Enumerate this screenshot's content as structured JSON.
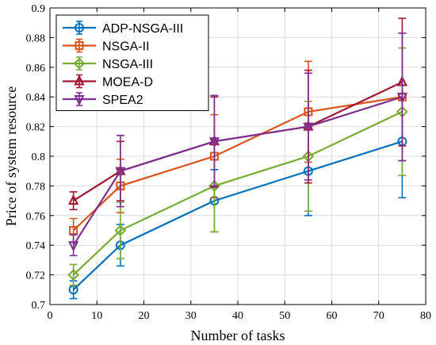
{
  "chart_data": {
    "type": "line",
    "title": "",
    "xlabel": "Number of tasks",
    "ylabel": "Price of system resource",
    "xlim": [
      0,
      80
    ],
    "ylim": [
      0.7,
      0.9
    ],
    "xticks": [
      0,
      10,
      20,
      30,
      40,
      50,
      60,
      70,
      80
    ],
    "yticks": [
      0.7,
      0.72,
      0.74,
      0.76,
      0.78,
      0.8,
      0.82,
      0.84,
      0.86,
      0.88,
      0.9
    ],
    "x": [
      5,
      15,
      35,
      55,
      75
    ],
    "grid": true,
    "legend_position": "top-left",
    "series": [
      {
        "name": "ADP-NSGA-III",
        "color": "#0072BD",
        "marker": "circle",
        "values": [
          0.71,
          0.74,
          0.77,
          0.79,
          0.81
        ],
        "errors": [
          0.006,
          0.014,
          0.021,
          0.03,
          0.038
        ]
      },
      {
        "name": "NSGA-II",
        "color": "#D95319",
        "marker": "square",
        "values": [
          0.75,
          0.78,
          0.8,
          0.83,
          0.84
        ],
        "errors": [
          0.008,
          0.018,
          0.028,
          0.034,
          0.043
        ]
      },
      {
        "name": "NSGA-III",
        "color": "#77AC30",
        "marker": "diamond",
        "values": [
          0.72,
          0.75,
          0.78,
          0.8,
          0.83
        ],
        "errors": [
          0.007,
          0.019,
          0.031,
          0.037,
          0.043
        ]
      },
      {
        "name": "MOEA-D",
        "color": "#A2142F",
        "marker": "triangle-up",
        "values": [
          0.77,
          0.79,
          0.81,
          0.82,
          0.85
        ],
        "errors": [
          0.006,
          0.02,
          0.03,
          0.038,
          0.043
        ]
      },
      {
        "name": "SPEA2",
        "color": "#7E2F8E",
        "marker": "triangle-down",
        "values": [
          0.74,
          0.79,
          0.81,
          0.82,
          0.84
        ],
        "errors": [
          0.007,
          0.024,
          0.031,
          0.036,
          0.043
        ]
      }
    ]
  }
}
